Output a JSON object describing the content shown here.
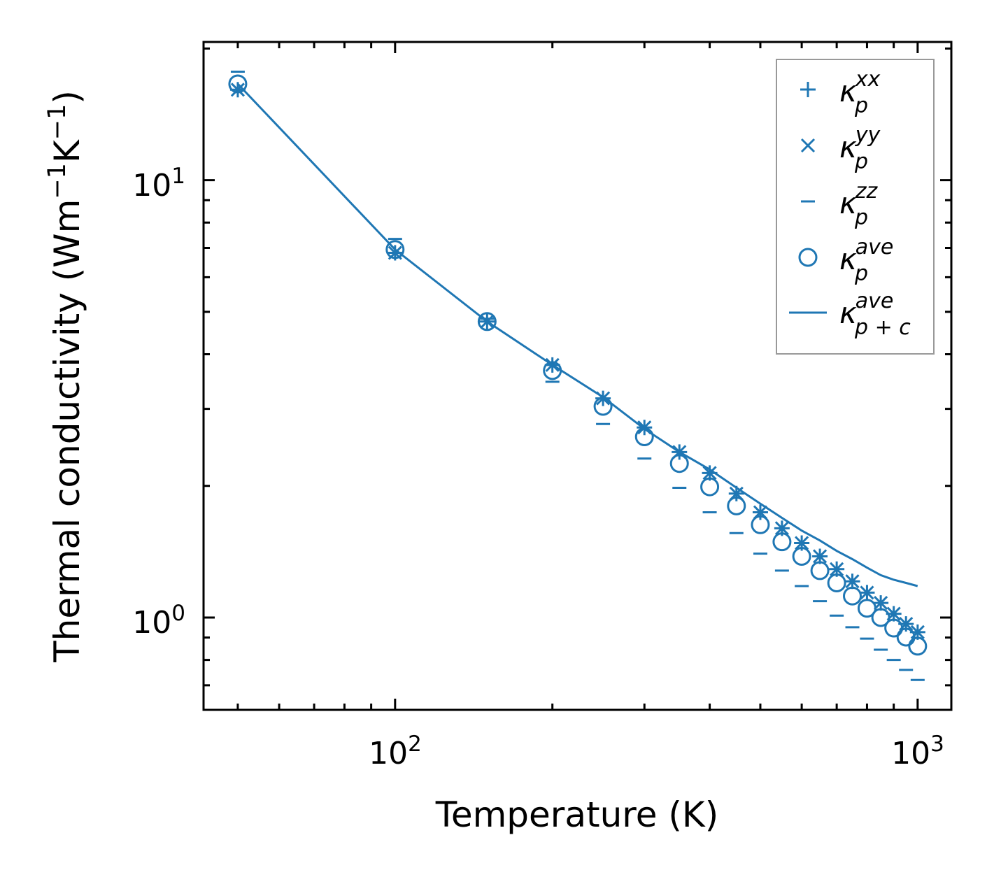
{
  "chart_data": {
    "type": "scatter",
    "title": "",
    "xlabel": "Temperature (K)",
    "ylabel": "Thermal conductivity (Wm",
    "ylabel_parts": [
      "Thermal conductivity (Wm",
      "−1",
      "K",
      "−1",
      ")"
    ],
    "xscale": "log",
    "yscale": "log",
    "xlim": [
      43,
      1160
    ],
    "ylim": [
      0.615,
      20.7
    ],
    "x_ticks": [
      {
        "base": "10",
        "exp": "2",
        "value": 100
      },
      {
        "base": "10",
        "exp": "3",
        "value": 1000
      }
    ],
    "y_ticks": [
      {
        "base": "10",
        "exp": "0",
        "value": 1
      },
      {
        "base": "10",
        "exp": "1",
        "value": 10
      }
    ],
    "grid": false,
    "legend_position": "top-right",
    "color": "#1f77b4",
    "x": [
      50,
      100,
      150,
      200,
      250,
      300,
      350,
      400,
      450,
      500,
      550,
      600,
      650,
      700,
      750,
      800,
      850,
      900,
      950,
      1000
    ],
    "series": [
      {
        "name": "xx",
        "label_base": "κ",
        "label_sub": "p",
        "label_sup": "xx",
        "marker": "plus",
        "values": [
          16.1,
          6.82,
          4.75,
          3.78,
          3.17,
          2.72,
          2.39,
          2.14,
          1.92,
          1.74,
          1.6,
          1.48,
          1.38,
          1.29,
          1.21,
          1.14,
          1.08,
          1.02,
          0.967,
          0.926
        ]
      },
      {
        "name": "yy",
        "label_base": "κ",
        "label_sub": "p",
        "label_sup": "yy",
        "marker": "x",
        "values": [
          16.1,
          6.82,
          4.75,
          3.78,
          3.17,
          2.72,
          2.39,
          2.14,
          1.92,
          1.74,
          1.6,
          1.48,
          1.38,
          1.29,
          1.21,
          1.14,
          1.08,
          1.02,
          0.967,
          0.926
        ]
      },
      {
        "name": "zz",
        "label_base": "κ",
        "label_sub": "p",
        "label_sup": "zz",
        "marker": "hline",
        "values": [
          17.7,
          7.34,
          4.82,
          3.46,
          2.77,
          2.31,
          1.98,
          1.74,
          1.56,
          1.4,
          1.28,
          1.18,
          1.09,
          1.01,
          0.95,
          0.895,
          0.844,
          0.8,
          0.759,
          0.72
        ]
      },
      {
        "name": "ave",
        "label_base": "κ",
        "label_sub": "p",
        "label_sup": "ave",
        "marker": "circle",
        "values": [
          16.6,
          6.94,
          4.75,
          3.67,
          3.04,
          2.59,
          2.25,
          1.99,
          1.8,
          1.63,
          1.49,
          1.38,
          1.28,
          1.2,
          1.12,
          1.05,
          1.0,
          0.946,
          0.902,
          0.86
        ]
      },
      {
        "name": "p+c ave",
        "label_base": "κ",
        "label_sub": "p + c",
        "label_sup": "ave",
        "marker": "line",
        "values": [
          16.6,
          6.94,
          4.75,
          3.78,
          3.19,
          2.7,
          2.39,
          2.18,
          1.98,
          1.82,
          1.69,
          1.58,
          1.5,
          1.42,
          1.36,
          1.3,
          1.25,
          1.22,
          1.2,
          1.18
        ]
      }
    ]
  }
}
